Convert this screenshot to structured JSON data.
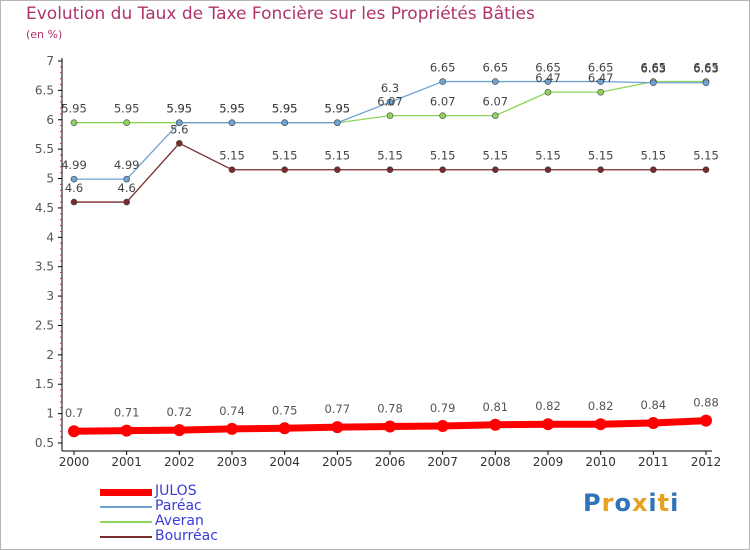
{
  "title": "Evolution du Taux de Taxe Foncière sur les Propriétés Bâties",
  "subtitle": "(en %)",
  "logo_text": "Proxiti",
  "logo_colors": [
    "#2f73b8",
    "#e8a020",
    "#2f73b8",
    "#e8a020",
    "#2f73b8",
    "#e8a020",
    "#2f73b8"
  ],
  "chart_data": {
    "type": "line",
    "title": "Evolution du Taux de Taxe Foncière sur les Propriétés Bâties",
    "ylabel": "(en %)",
    "xlabel": "",
    "grid": false,
    "ylim": [
      0.5,
      7
    ],
    "yticks": [
      "0.5",
      "1",
      "1.5",
      "2",
      "2.5",
      "3",
      "3.5",
      "4",
      "4.5",
      "5",
      "5.5",
      "6",
      "6.5",
      "7"
    ],
    "categories": [
      "2000",
      "2001",
      "2002",
      "2003",
      "2004",
      "2005",
      "2006",
      "2007",
      "2008",
      "2009",
      "2010",
      "2011",
      "2012"
    ],
    "series": [
      {
        "name": "JULOS",
        "color": "#ff0000",
        "values": [
          0.7,
          0.71,
          0.72,
          0.74,
          0.75,
          0.77,
          0.78,
          0.79,
          0.81,
          0.82,
          0.82,
          0.84,
          0.88
        ],
        "labels": [
          "0.7",
          "0.71",
          "0.72",
          "0.74",
          "0.75",
          "0.77",
          "0.78",
          "0.79",
          "0.81",
          "0.82",
          "0.82",
          "0.84",
          "0.88"
        ]
      },
      {
        "name": "Paréac",
        "color": "#6fa3d4",
        "values": [
          4.99,
          4.99,
          5.95,
          5.95,
          5.95,
          5.95,
          6.3,
          6.65,
          6.65,
          6.65,
          6.65,
          6.63,
          6.63
        ],
        "labels": [
          "4.99",
          "4.99",
          "5.95",
          "5.95",
          "5.95",
          "5.95",
          "6.3",
          "6.65",
          "6.65",
          "6.65",
          "6.65",
          "6.63",
          "6.63"
        ]
      },
      {
        "name": "Averan",
        "color": "#8fd45a",
        "values": [
          5.95,
          5.95,
          5.95,
          5.95,
          5.95,
          5.95,
          6.07,
          6.07,
          6.07,
          6.47,
          6.47,
          6.65,
          6.65
        ],
        "labels": [
          "5.95",
          "5.95",
          "5.95",
          "5.95",
          "5.95",
          "5.95",
          "6.07",
          "6.07",
          "6.07",
          "6.47",
          "6.47",
          "6.65",
          "6.65"
        ]
      },
      {
        "name": "Bourréac",
        "color": "#7a2a2a",
        "values": [
          4.6,
          4.6,
          5.6,
          5.15,
          5.15,
          5.15,
          5.15,
          5.15,
          5.15,
          5.15,
          5.15,
          5.15,
          5.15
        ],
        "labels": [
          "4.6",
          "4.6",
          "5.6",
          "5.15",
          "5.15",
          "5.15",
          "5.15",
          "5.15",
          "5.15",
          "5.15",
          "5.15",
          "5.15",
          "5.15"
        ]
      }
    ],
    "legend_position": "bottom-left"
  }
}
